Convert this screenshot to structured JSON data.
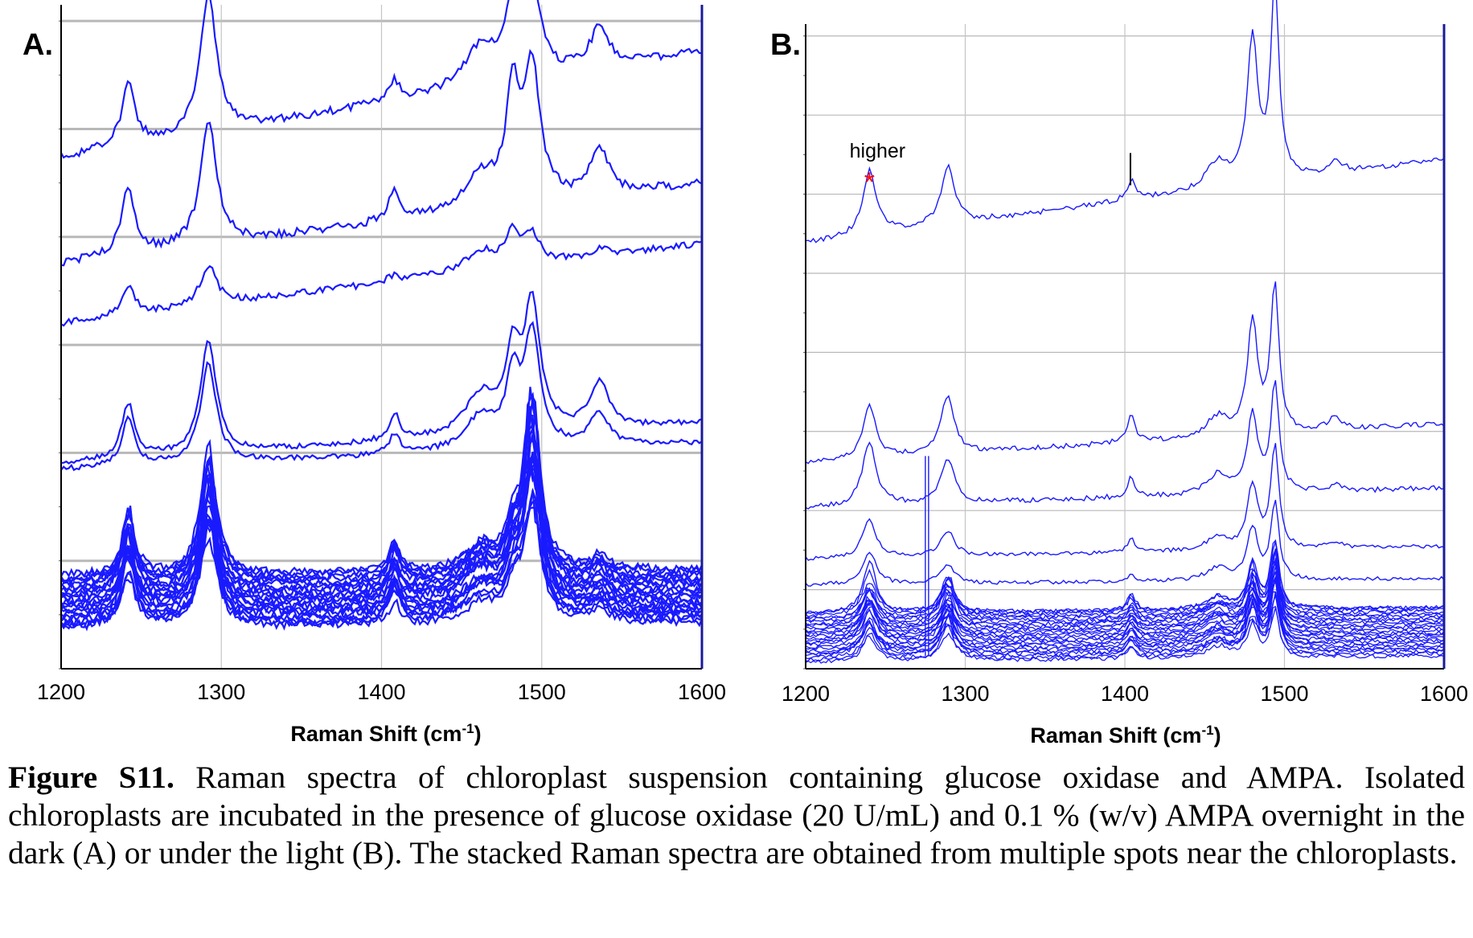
{
  "chart_data": [
    {
      "type": "line",
      "panel_label": "A.",
      "title": "",
      "xlabel_main": "Raman Shift (cm",
      "xlabel_sup": "-1",
      "xlabel_end": ")",
      "ylabel": "",
      "xlim": [
        1200,
        1600
      ],
      "x_ticks": [
        "1200",
        "1300",
        "1400",
        "1500",
        "1600"
      ],
      "grid": true,
      "legend": "none",
      "line_color": "#1a1aff",
      "peaks": [
        {
          "x": 1242,
          "w": 5
        },
        {
          "x": 1292,
          "w": 6
        },
        {
          "x": 1408,
          "w": 4
        },
        {
          "x": 1462,
          "w": 12
        },
        {
          "x": 1482,
          "w": 5
        },
        {
          "x": 1494,
          "w": 6
        },
        {
          "x": 1536,
          "w": 7
        }
      ],
      "series": [
        {
          "level": 0.77,
          "rise": 0.16,
          "heights": [
            0.09,
            0.21,
            0.03,
            0.06,
            0.11,
            0.14,
            0.06
          ],
          "noise": 0.006
        },
        {
          "level": 0.61,
          "rise": 0.12,
          "heights": [
            0.1,
            0.19,
            0.05,
            0.05,
            0.16,
            0.2,
            0.07
          ],
          "noise": 0.006
        },
        {
          "level": 0.52,
          "rise": 0.12,
          "heights": [
            0.04,
            0.06,
            0.01,
            0.03,
            0.05,
            0.04,
            0.01
          ],
          "noise": 0.005
        },
        {
          "level": 0.31,
          "rise": 0.06,
          "heights": [
            0.08,
            0.17,
            0.04,
            0.06,
            0.11,
            0.19,
            0.07
          ],
          "noise": 0.004
        },
        {
          "level": 0.3,
          "rise": 0.04,
          "heights": [
            0.07,
            0.15,
            0.03,
            0.05,
            0.1,
            0.17,
            0.05
          ],
          "noise": 0.004
        }
      ],
      "cluster": {
        "count": 22,
        "level_min": 0.06,
        "level_max": 0.14,
        "heights": [
          0.09,
          0.16,
          0.04,
          0.04,
          0.05,
          0.22,
          0.02
        ],
        "noise": 0.006
      },
      "annotations": []
    },
    {
      "type": "line",
      "panel_label": "B.",
      "title": "",
      "xlabel_main": "Raman Shift (cm",
      "xlabel_sup": "-1",
      "xlabel_end": ")",
      "ylabel": "",
      "xlim": [
        1200,
        1600
      ],
      "x_ticks": [
        "1200",
        "1300",
        "1400",
        "1500",
        "1600"
      ],
      "grid": true,
      "legend": "none",
      "line_color": "#1a1aff",
      "peaks": [
        {
          "x": 1240,
          "w": 5
        },
        {
          "x": 1289,
          "w": 5
        },
        {
          "x": 1404,
          "w": 3
        },
        {
          "x": 1458,
          "w": 8
        },
        {
          "x": 1480,
          "w": 4
        },
        {
          "x": 1494,
          "w": 3
        },
        {
          "x": 1532,
          "w": 5
        }
      ],
      "series": [
        {
          "level": 0.66,
          "rise": 0.13,
          "heights": [
            0.1,
            0.09,
            0.03,
            0.04,
            0.22,
            0.3,
            0.02
          ],
          "noise": 0.004
        },
        {
          "level": 0.32,
          "rise": 0.06,
          "heights": [
            0.08,
            0.09,
            0.04,
            0.03,
            0.17,
            0.23,
            0.02
          ],
          "noise": 0.004
        },
        {
          "level": 0.25,
          "rise": 0.03,
          "heights": [
            0.1,
            0.07,
            0.03,
            0.03,
            0.12,
            0.17,
            0.01
          ],
          "noise": 0.004
        },
        {
          "level": 0.17,
          "rise": 0.02,
          "heights": [
            0.06,
            0.04,
            0.02,
            0.02,
            0.1,
            0.16,
            0.01
          ],
          "noise": 0.003
        },
        {
          "level": 0.13,
          "rise": 0.01,
          "heights": [
            0.05,
            0.03,
            0.01,
            0.02,
            0.08,
            0.12,
            0.0
          ],
          "noise": 0.003
        },
        {
          "level": 0.085,
          "rise": 0.01,
          "heights": [
            0.08,
            0.05,
            0.02,
            0.02,
            0.07,
            0.1,
            0.0
          ],
          "noise": 0.003
        }
      ],
      "cluster": {
        "count": 24,
        "level_min": 0.01,
        "level_max": 0.085,
        "heights": [
          0.05,
          0.05,
          0.02,
          0.02,
          0.06,
          0.09,
          0.0
        ],
        "noise": 0.003
      },
      "annotations": [
        {
          "text": "higher",
          "marker": "*",
          "x": 1240
        }
      ]
    }
  ],
  "caption": {
    "label": "Figure S11.",
    "text": " Raman spectra of chloroplast suspension containing glucose oxidase and AMPA. Isolated chloroplasts are incubated in the presence of glucose oxidase (20 U/mL) and 0.1 % (w/v) AMPA overnight in the dark (A) or under the light (B). The stacked Raman spectra are obtained from multiple spots near the chloroplasts."
  }
}
